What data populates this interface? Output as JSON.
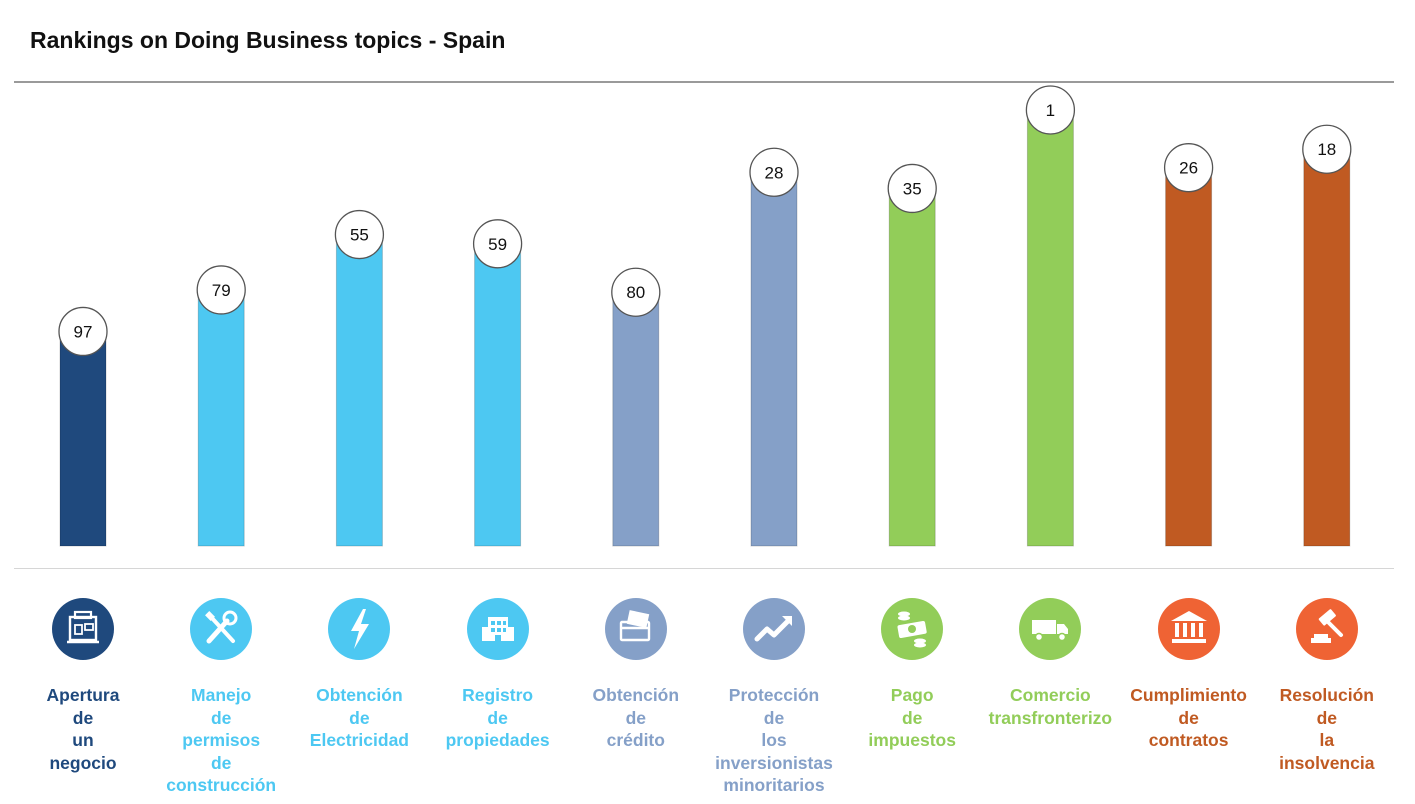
{
  "title": "Rankings on Doing Business topics - Spain",
  "colors": {
    "dark_blue": "#1f497d",
    "light_blue": "#4dc8f2",
    "gray_blue": "#85a0c8",
    "green": "#92cd59",
    "orange": "#c05a22",
    "icon_orange": "#ef6334"
  },
  "chart_data": {
    "type": "bar",
    "title": "Rankings on Doing Business topics - Spain",
    "note": "Bar height reflects ranking (rank 1 tallest); rank shown in circle label",
    "categories": [
      "Apertura de un negocio",
      "Manejo de permisos de construcción",
      "Obtención de Electricidad",
      "Registro de propiedades",
      "Obtención de crédito",
      "Protección de los inversionistas minoritarios",
      "Pago de impuestos",
      "Comercio transfronterizo",
      "Cumplimiento de contratos",
      "Resolución de la insolvencia"
    ],
    "values": [
      97,
      79,
      55,
      59,
      80,
      28,
      35,
      1,
      26,
      18
    ],
    "value_labels": [
      "97",
      "79",
      "55",
      "59",
      "80",
      "28",
      "35",
      "1",
      "26",
      "18"
    ],
    "bar_colors": [
      "#1f497d",
      "#4dc8f2",
      "#4dc8f2",
      "#4dc8f2",
      "#85a0c8",
      "#85a0c8",
      "#92cd59",
      "#92cd59",
      "#c05a22",
      "#c05a22"
    ],
    "xlabel": "",
    "ylabel": "",
    "ylim": [
      1,
      190
    ],
    "grid": false,
    "legend": "none"
  },
  "topics": [
    {
      "label": "Apertura\nde\nun\nnegocio",
      "color": "#1f497d",
      "icon": "building-icon"
    },
    {
      "label": "Manejo\nde\npermisos\nde\nconstrucción",
      "color": "#4dc8f2",
      "icon": "tools-icon"
    },
    {
      "label": "Obtención\nde\nElectricidad",
      "color": "#4dc8f2",
      "icon": "lightning-icon"
    },
    {
      "label": "Registro\nde\npropiedades",
      "color": "#4dc8f2",
      "icon": "city-icon"
    },
    {
      "label": "Obtención\nde\ncrédito",
      "color": "#85a0c8",
      "icon": "credit-card-icon"
    },
    {
      "label": "Protección\nde\nlos\ninversionistas\nminoritarios",
      "color": "#85a0c8",
      "icon": "trend-up-icon"
    },
    {
      "label": "Pago\nde\nimpuestos",
      "color": "#92cd59",
      "icon": "money-icon"
    },
    {
      "label": "Comercio\ntransfronterizo",
      "color": "#92cd59",
      "icon": "truck-icon"
    },
    {
      "label": "Cumplimiento\nde\ncontratos",
      "color": "#c05a22",
      "icon": "courthouse-icon"
    },
    {
      "label": "Resolución\nde\nla\ninsolvencia",
      "color": "#c05a22",
      "icon": "gavel-icon"
    }
  ]
}
